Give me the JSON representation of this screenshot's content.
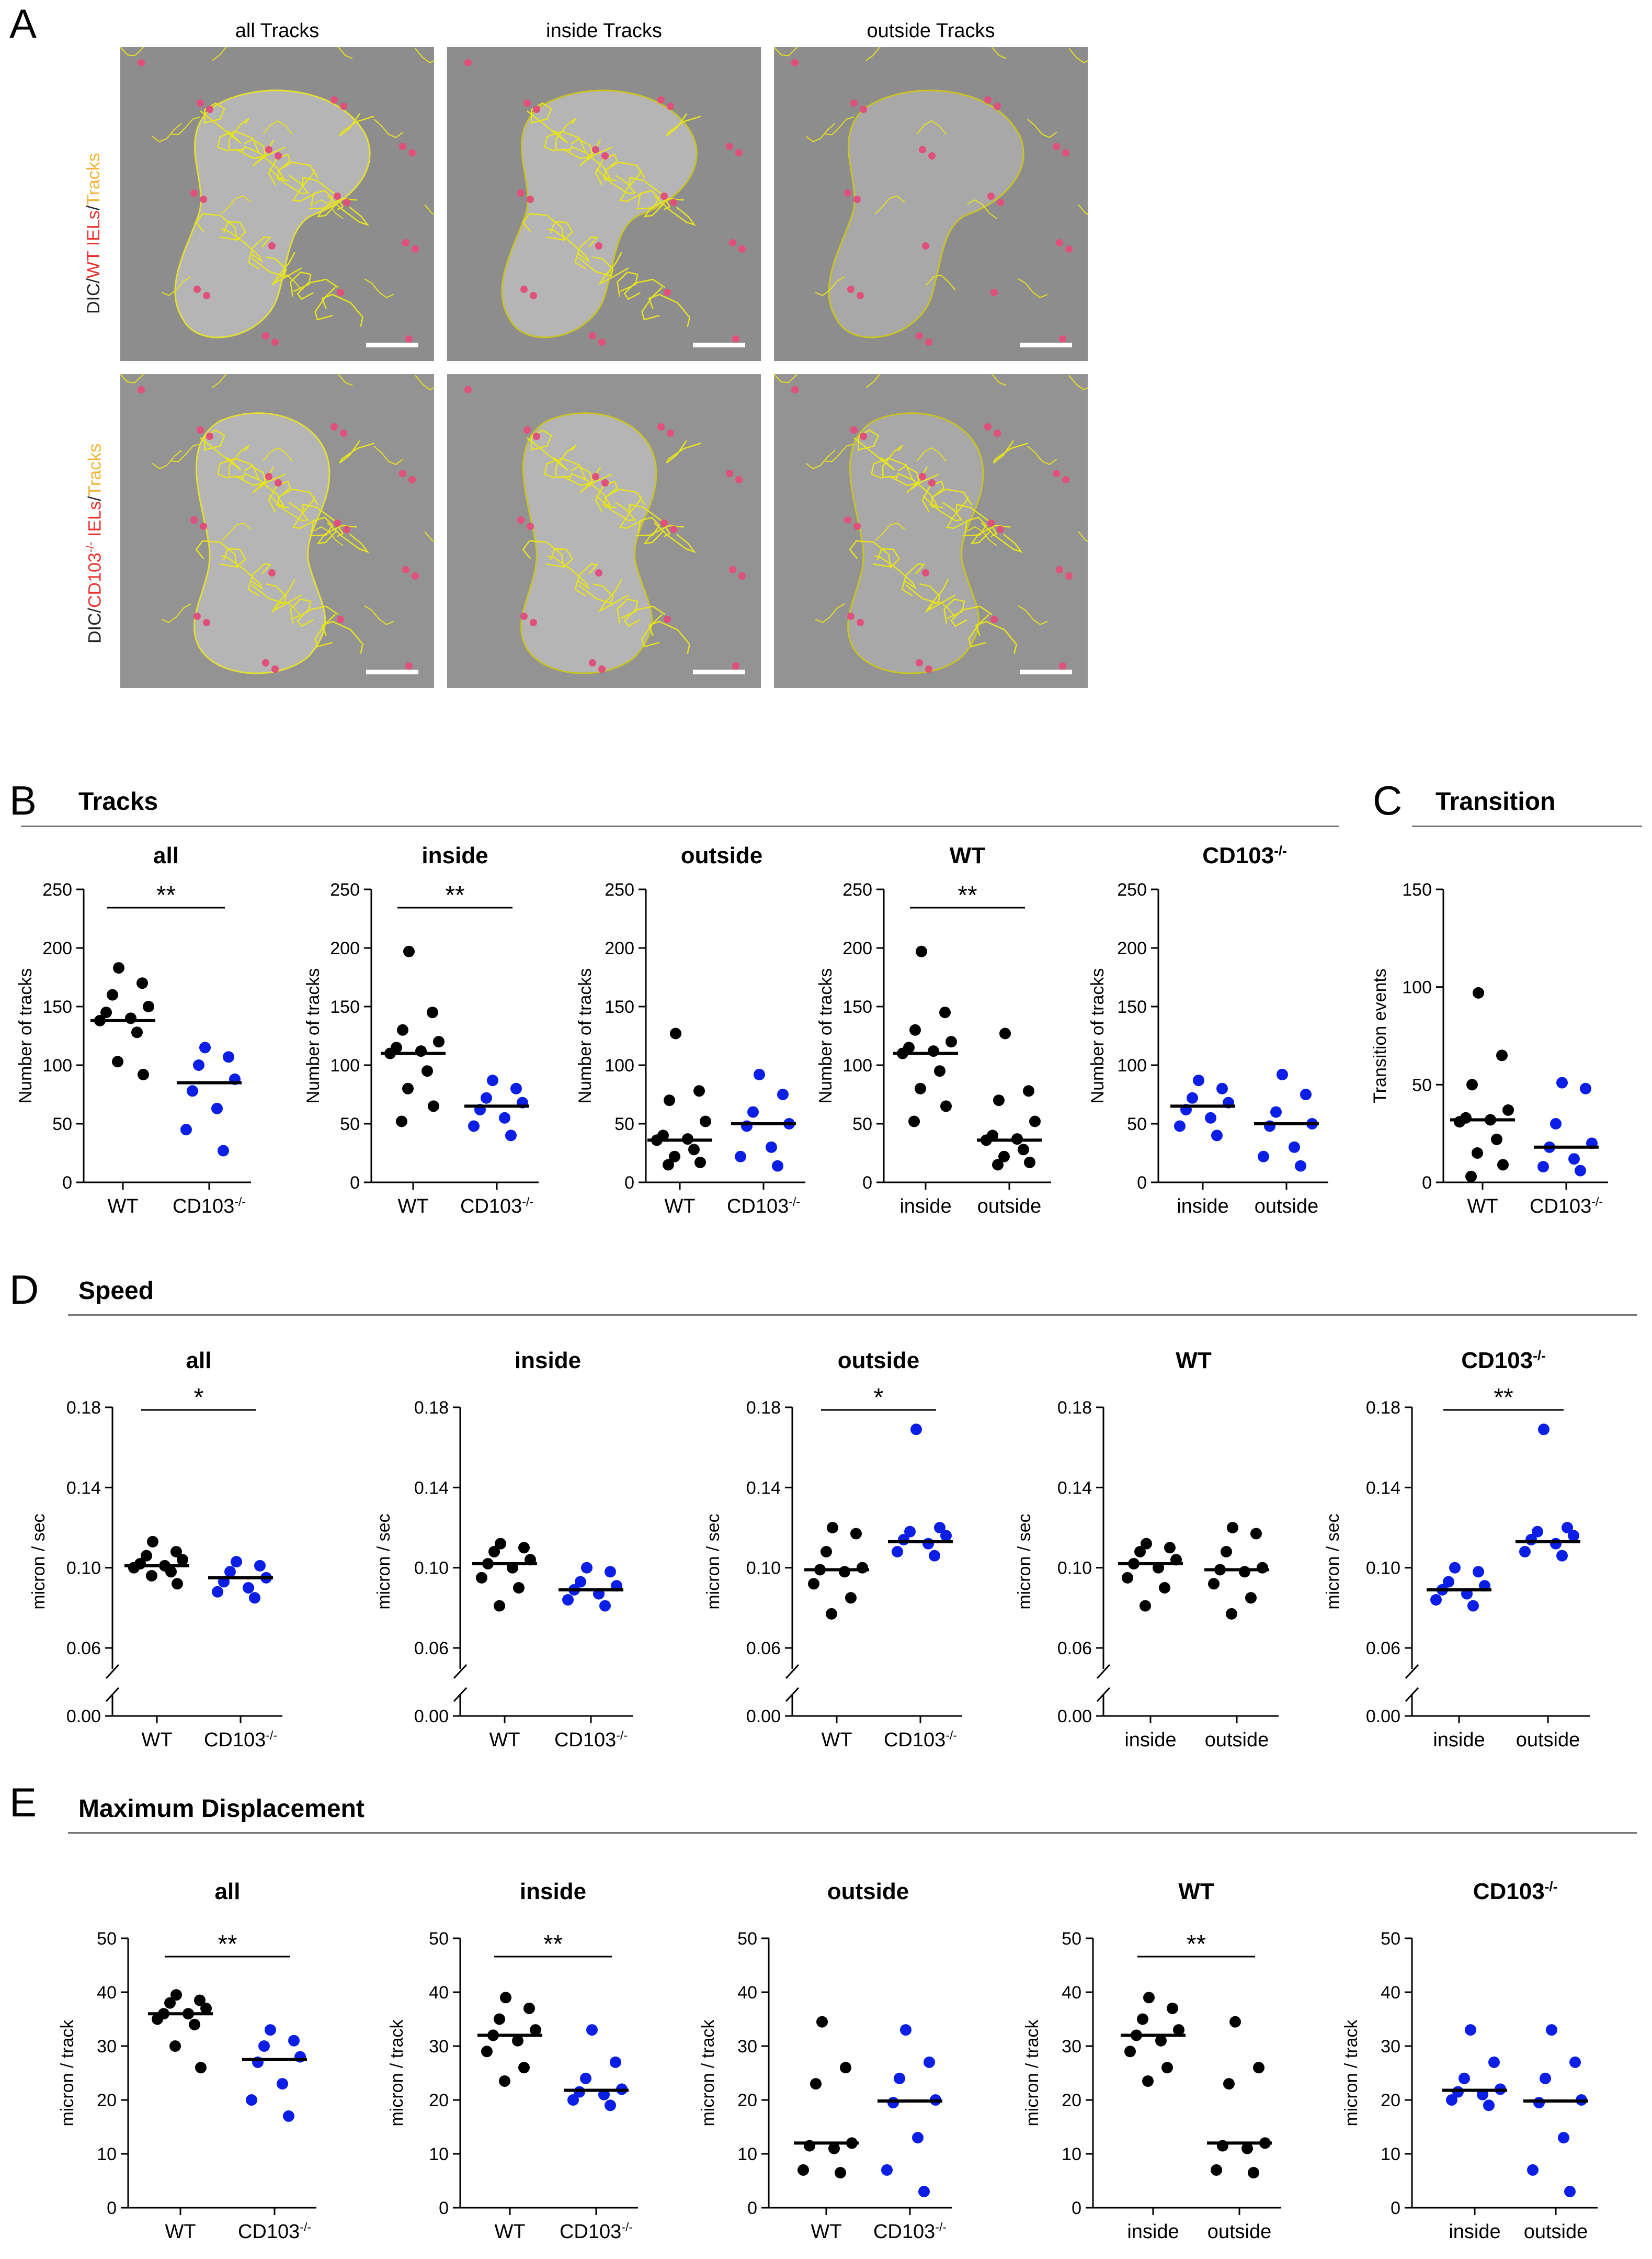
{
  "panel_a": {
    "letter": "A",
    "column_titles": [
      "all Tracks",
      "inside Tracks",
      "outside Tracks"
    ],
    "row_labels": [
      {
        "parts": [
          {
            "text": "DIC/",
            "color": "#222222"
          },
          {
            "text": "WT IELs",
            "color": "#e8322f"
          },
          {
            "text": "/",
            "color": "#222222"
          },
          {
            "text": "Tracks",
            "color": "#f0b43a"
          }
        ]
      },
      {
        "parts": [
          {
            "text": "DIC/",
            "color": "#222222"
          },
          {
            "text": "CD103",
            "color": "#e8322f"
          },
          {
            "text": "-/-",
            "color": "#e8322f",
            "sup": true
          },
          {
            "text": " IELs",
            "color": "#e8322f"
          },
          {
            "text": "/",
            "color": "#222222"
          },
          {
            "text": "Tracks",
            "color": "#f0b43a"
          }
        ]
      }
    ]
  },
  "sections": {
    "B": {
      "letter": "B",
      "title": "Tracks"
    },
    "C": {
      "letter": "C",
      "title": "Transition"
    },
    "D": {
      "letter": "D",
      "title": "Speed"
    },
    "E": {
      "letter": "E",
      "title": "Maximum Displacement"
    }
  },
  "colors": {
    "group1": "#000000",
    "group2": "#0a1ee6",
    "axis": "#000000"
  },
  "chart_data": [
    {
      "id": "B-all",
      "type": "scatter",
      "title": "all",
      "ylabel": "Number of tracks",
      "ylim": [
        0,
        250
      ],
      "yticks": [
        0,
        50,
        100,
        150,
        200,
        250
      ],
      "categories": [
        {
          "base": "WT"
        },
        {
          "base": "CD103",
          "sup": "-/-"
        }
      ],
      "sig": "**",
      "sig_pair": [
        0,
        1
      ],
      "series": [
        {
          "name": "WT",
          "values": [
            183,
            170,
            160,
            150,
            145,
            140,
            138,
            128,
            103,
            92
          ],
          "median": 138
        },
        {
          "name": "CD103-/-",
          "values": [
            115,
            107,
            100,
            88,
            78,
            63,
            45,
            27
          ],
          "median": 85
        }
      ]
    },
    {
      "id": "B-inside",
      "type": "scatter",
      "title": "inside",
      "ylabel": "Number of tracks",
      "ylim": [
        0,
        250
      ],
      "yticks": [
        0,
        50,
        100,
        150,
        200,
        250
      ],
      "categories": [
        {
          "base": "WT"
        },
        {
          "base": "CD103",
          "sup": "-/-"
        }
      ],
      "sig": "**",
      "sig_pair": [
        0,
        1
      ],
      "series": [
        {
          "name": "WT",
          "values": [
            197,
            145,
            130,
            120,
            115,
            112,
            110,
            95,
            80,
            65,
            52
          ],
          "median": 110
        },
        {
          "name": "CD103-/-",
          "values": [
            87,
            80,
            72,
            68,
            62,
            55,
            48,
            40
          ],
          "median": 65
        }
      ]
    },
    {
      "id": "B-outside",
      "type": "scatter",
      "title": "outside",
      "ylabel": "Number of tracks",
      "ylim": [
        0,
        250
      ],
      "yticks": [
        0,
        50,
        100,
        150,
        200,
        250
      ],
      "categories": [
        {
          "base": "WT"
        },
        {
          "base": "CD103",
          "sup": "-/-"
        }
      ],
      "sig": "",
      "sig_pair": [
        0,
        1
      ],
      "series": [
        {
          "name": "WT",
          "values": [
            127,
            78,
            70,
            52,
            40,
            37,
            36,
            28,
            22,
            17,
            15
          ],
          "median": 36
        },
        {
          "name": "CD103-/-",
          "values": [
            92,
            75,
            60,
            50,
            48,
            30,
            22,
            14
          ],
          "median": 50
        }
      ]
    },
    {
      "id": "B-WT",
      "type": "scatter",
      "title": "WT",
      "ylabel": "Number of tracks",
      "ylim": [
        0,
        250
      ],
      "yticks": [
        0,
        50,
        100,
        150,
        200,
        250
      ],
      "categories": [
        {
          "base": "inside"
        },
        {
          "base": "outside"
        }
      ],
      "sig": "**",
      "sig_pair": [
        0,
        1
      ],
      "series": [
        {
          "name": "inside",
          "values": [
            197,
            145,
            130,
            120,
            115,
            112,
            110,
            95,
            80,
            65,
            52
          ],
          "median": 110
        },
        {
          "name": "outside",
          "values": [
            127,
            78,
            70,
            52,
            40,
            37,
            36,
            28,
            22,
            17,
            15
          ],
          "median": 36
        }
      ]
    },
    {
      "id": "B-CD103",
      "type": "scatter",
      "title": "CD103",
      "title_sup": "-/-",
      "ylabel": "Number of tracks",
      "ylim": [
        0,
        250
      ],
      "yticks": [
        0,
        50,
        100,
        150,
        200,
        250
      ],
      "categories": [
        {
          "base": "inside"
        },
        {
          "base": "outside"
        }
      ],
      "sig": "",
      "sig_pair": [
        0,
        1
      ],
      "series": [
        {
          "name": "inside",
          "values": [
            87,
            80,
            72,
            68,
            62,
            55,
            48,
            40
          ],
          "median": 65,
          "color": "group2"
        },
        {
          "name": "outside",
          "values": [
            92,
            75,
            60,
            50,
            48,
            30,
            22,
            14
          ],
          "median": 50
        }
      ]
    },
    {
      "id": "C-transition",
      "type": "scatter",
      "title": "",
      "ylabel": "Transition events",
      "ylim": [
        0,
        150
      ],
      "yticks": [
        0,
        50,
        100,
        150
      ],
      "categories": [
        {
          "base": "WT"
        },
        {
          "base": "CD103",
          "sup": "-/-"
        }
      ],
      "sig": "",
      "sig_pair": [
        0,
        1
      ],
      "series": [
        {
          "name": "WT",
          "values": [
            97,
            65,
            50,
            37,
            33,
            32,
            31,
            22,
            15,
            9,
            3
          ],
          "median": 32
        },
        {
          "name": "CD103-/-",
          "values": [
            51,
            48,
            30,
            20,
            18,
            12,
            8,
            6
          ],
          "median": 18
        }
      ]
    },
    {
      "id": "D-all",
      "type": "scatter",
      "title": "all",
      "ylabel": "micron / sec",
      "ylim": [
        0,
        0.18
      ],
      "yticks": [
        0.0,
        0.06,
        0.1,
        0.14,
        0.18
      ],
      "broken": true,
      "categories": [
        {
          "base": "WT"
        },
        {
          "base": "CD103",
          "sup": "-/-"
        }
      ],
      "sig": "*",
      "sig_pair": [
        0,
        1
      ],
      "series": [
        {
          "name": "WT",
          "values": [
            0.113,
            0.108,
            0.106,
            0.104,
            0.102,
            0.101,
            0.1,
            0.098,
            0.096,
            0.092
          ],
          "median": 0.101
        },
        {
          "name": "CD103-/-",
          "values": [
            0.103,
            0.101,
            0.098,
            0.095,
            0.093,
            0.09,
            0.088,
            0.085
          ],
          "median": 0.095
        }
      ]
    },
    {
      "id": "D-inside",
      "type": "scatter",
      "title": "inside",
      "ylabel": "micron / sec",
      "ylim": [
        0,
        0.18
      ],
      "yticks": [
        0.0,
        0.06,
        0.1,
        0.14,
        0.18
      ],
      "broken": true,
      "categories": [
        {
          "base": "WT"
        },
        {
          "base": "CD103",
          "sup": "-/-"
        }
      ],
      "sig": "",
      "sig_pair": [
        0,
        1
      ],
      "series": [
        {
          "name": "WT",
          "values": [
            0.112,
            0.11,
            0.108,
            0.104,
            0.102,
            0.1,
            0.095,
            0.09,
            0.081
          ],
          "median": 0.102
        },
        {
          "name": "CD103-/-",
          "values": [
            0.1,
            0.098,
            0.093,
            0.091,
            0.089,
            0.087,
            0.084,
            0.081
          ],
          "median": 0.089
        }
      ]
    },
    {
      "id": "D-outside",
      "type": "scatter",
      "title": "outside",
      "ylabel": "micron / sec",
      "ylim": [
        0,
        0.18
      ],
      "yticks": [
        0.0,
        0.06,
        0.1,
        0.14,
        0.18
      ],
      "broken": true,
      "categories": [
        {
          "base": "WT"
        },
        {
          "base": "CD103",
          "sup": "-/-"
        }
      ],
      "sig": "*",
      "sig_pair": [
        0,
        1
      ],
      "series": [
        {
          "name": "WT",
          "values": [
            0.12,
            0.117,
            0.108,
            0.1,
            0.099,
            0.098,
            0.092,
            0.085,
            0.077
          ],
          "median": 0.099
        },
        {
          "name": "CD103-/-",
          "values": [
            0.169,
            0.12,
            0.118,
            0.116,
            0.114,
            0.112,
            0.108,
            0.106
          ],
          "median": 0.113
        }
      ]
    },
    {
      "id": "D-WT",
      "type": "scatter",
      "title": "WT",
      "ylabel": "micron / sec",
      "ylim": [
        0,
        0.18
      ],
      "yticks": [
        0.0,
        0.06,
        0.1,
        0.14,
        0.18
      ],
      "broken": true,
      "categories": [
        {
          "base": "inside"
        },
        {
          "base": "outside"
        }
      ],
      "sig": "",
      "sig_pair": [
        0,
        1
      ],
      "series": [
        {
          "name": "inside",
          "values": [
            0.112,
            0.11,
            0.108,
            0.104,
            0.102,
            0.1,
            0.095,
            0.09,
            0.081
          ],
          "median": 0.102
        },
        {
          "name": "outside",
          "values": [
            0.12,
            0.117,
            0.108,
            0.1,
            0.099,
            0.098,
            0.092,
            0.085,
            0.077
          ],
          "median": 0.099
        }
      ]
    },
    {
      "id": "D-CD103",
      "type": "scatter",
      "title": "CD103",
      "title_sup": "-/-",
      "ylabel": "micron / sec",
      "ylim": [
        0,
        0.18
      ],
      "yticks": [
        0.0,
        0.06,
        0.1,
        0.14,
        0.18
      ],
      "broken": true,
      "categories": [
        {
          "base": "inside"
        },
        {
          "base": "outside"
        }
      ],
      "sig": "**",
      "sig_pair": [
        0,
        1
      ],
      "series": [
        {
          "name": "inside",
          "values": [
            0.1,
            0.098,
            0.093,
            0.091,
            0.089,
            0.087,
            0.084,
            0.081
          ],
          "median": 0.089,
          "color": "group2"
        },
        {
          "name": "outside",
          "values": [
            0.169,
            0.12,
            0.118,
            0.116,
            0.114,
            0.112,
            0.108,
            0.106
          ],
          "median": 0.113
        }
      ]
    },
    {
      "id": "E-all",
      "type": "scatter",
      "title": "all",
      "ylabel": "micron / track",
      "ylim": [
        0,
        50
      ],
      "yticks": [
        0,
        10,
        20,
        30,
        40,
        50
      ],
      "categories": [
        {
          "base": "WT"
        },
        {
          "base": "CD103",
          "sup": "-/-"
        }
      ],
      "sig": "**",
      "sig_pair": [
        0,
        1
      ],
      "series": [
        {
          "name": "WT",
          "values": [
            39.5,
            38.5,
            38,
            37,
            36,
            36,
            35,
            34,
            30,
            26
          ],
          "median": 36
        },
        {
          "name": "CD103-/-",
          "values": [
            33,
            31,
            30,
            28,
            27,
            23,
            20,
            17
          ],
          "median": 27.5
        }
      ]
    },
    {
      "id": "E-inside",
      "type": "scatter",
      "title": "inside",
      "ylabel": "micron / track",
      "ylim": [
        0,
        50
      ],
      "yticks": [
        0,
        10,
        20,
        30,
        40,
        50
      ],
      "categories": [
        {
          "base": "WT"
        },
        {
          "base": "CD103",
          "sup": "-/-"
        }
      ],
      "sig": "**",
      "sig_pair": [
        0,
        1
      ],
      "series": [
        {
          "name": "WT",
          "values": [
            39,
            37,
            35,
            33,
            32,
            31,
            29,
            26,
            23.5
          ],
          "median": 32
        },
        {
          "name": "CD103-/-",
          "values": [
            33,
            27,
            24,
            22,
            21.5,
            21,
            20,
            19
          ],
          "median": 21.8
        }
      ]
    },
    {
      "id": "E-outside",
      "type": "scatter",
      "title": "outside",
      "ylabel": "micron / track",
      "ylim": [
        0,
        50
      ],
      "yticks": [
        0,
        10,
        20,
        30,
        40,
        50
      ],
      "categories": [
        {
          "base": "WT"
        },
        {
          "base": "CD103",
          "sup": "-/-"
        }
      ],
      "sig": "",
      "sig_pair": [
        0,
        1
      ],
      "series": [
        {
          "name": "WT",
          "values": [
            34.5,
            26,
            23,
            12,
            11.5,
            11,
            7,
            6.5
          ],
          "median": 12
        },
        {
          "name": "CD103-/-",
          "values": [
            33,
            27,
            24,
            20,
            19.5,
            13,
            7,
            3
          ],
          "median": 19.8
        }
      ]
    },
    {
      "id": "E-WT",
      "type": "scatter",
      "title": "WT",
      "ylabel": "micron / track",
      "ylim": [
        0,
        50
      ],
      "yticks": [
        0,
        10,
        20,
        30,
        40,
        50
      ],
      "categories": [
        {
          "base": "inside"
        },
        {
          "base": "outside"
        }
      ],
      "sig": "**",
      "sig_pair": [
        0,
        1
      ],
      "series": [
        {
          "name": "inside",
          "values": [
            39,
            37,
            35,
            33,
            32,
            31,
            29,
            26,
            23.5
          ],
          "median": 32
        },
        {
          "name": "outside",
          "values": [
            34.5,
            26,
            23,
            12,
            11.5,
            11,
            7,
            6.5
          ],
          "median": 12
        }
      ]
    },
    {
      "id": "E-CD103",
      "type": "scatter",
      "title": "CD103",
      "title_sup": "-/-",
      "ylabel": "micron / track",
      "ylim": [
        0,
        50
      ],
      "yticks": [
        0,
        10,
        20,
        30,
        40,
        50
      ],
      "categories": [
        {
          "base": "inside"
        },
        {
          "base": "outside"
        }
      ],
      "sig": "",
      "sig_pair": [
        0,
        1
      ],
      "series": [
        {
          "name": "inside",
          "values": [
            33,
            27,
            24,
            22,
            21.5,
            21,
            20,
            19
          ],
          "median": 21.8,
          "color": "group2"
        },
        {
          "name": "outside",
          "values": [
            33,
            27,
            24,
            20,
            19.5,
            13,
            7,
            3
          ],
          "median": 19.8
        }
      ]
    }
  ]
}
